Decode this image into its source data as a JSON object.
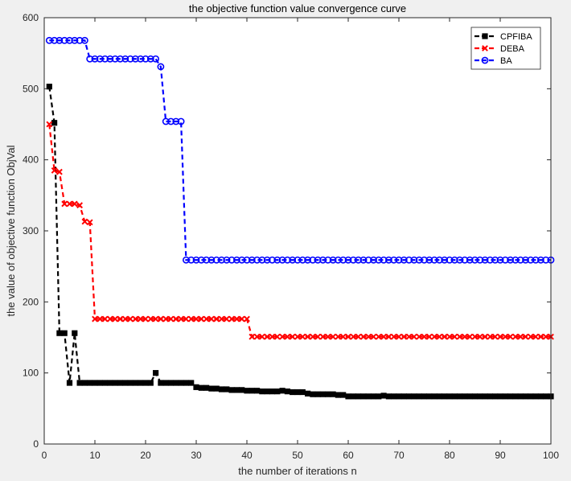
{
  "chart_data": {
    "type": "line",
    "title": "the objective function value convergence curve",
    "xlabel": "the number of iterations n",
    "ylabel": "the value of objective function ObjVal",
    "xlim": [
      0,
      100
    ],
    "ylim": [
      0,
      600
    ],
    "xticks": [
      0,
      10,
      20,
      30,
      40,
      50,
      60,
      70,
      80,
      90,
      100
    ],
    "yticks": [
      0,
      100,
      200,
      300,
      400,
      500,
      600
    ],
    "grid": false,
    "legend_position": "top-right",
    "colors": {
      "background": "#f0f0f0",
      "axes": "#ffffff"
    },
    "series": [
      {
        "name": "CPFIBA",
        "color": "#000000",
        "marker": "filled-square",
        "x": [
          1,
          2,
          3,
          4,
          5,
          6,
          7,
          8,
          9,
          10,
          11,
          12,
          13,
          14,
          15,
          16,
          17,
          18,
          19,
          20,
          21,
          22,
          23,
          24,
          25,
          26,
          27,
          28,
          29,
          30,
          31,
          32,
          33,
          34,
          35,
          36,
          37,
          38,
          39,
          40,
          41,
          42,
          43,
          44,
          45,
          46,
          47,
          48,
          49,
          50,
          51,
          52,
          53,
          54,
          55,
          56,
          57,
          58,
          59,
          60,
          61,
          62,
          63,
          64,
          65,
          66,
          67,
          68,
          69,
          70,
          71,
          72,
          73,
          74,
          75,
          76,
          77,
          78,
          79,
          80,
          81,
          82,
          83,
          84,
          85,
          86,
          87,
          88,
          89,
          90,
          91,
          92,
          93,
          94,
          95,
          96,
          97,
          98,
          99,
          100
        ],
        "y": [
          503,
          452,
          156,
          156,
          86,
          156,
          86,
          86,
          86,
          86,
          86,
          86,
          86,
          86,
          86,
          86,
          86,
          86,
          86,
          86,
          86,
          100,
          86,
          86,
          86,
          86,
          86,
          86,
          86,
          80,
          79,
          79,
          78,
          78,
          77,
          77,
          76,
          76,
          76,
          75,
          75,
          75,
          74,
          74,
          74,
          74,
          75,
          74,
          73,
          73,
          73,
          71,
          70,
          70,
          70,
          70,
          70,
          69,
          69,
          67,
          67,
          67,
          67,
          67,
          67,
          67,
          68,
          67,
          67,
          67,
          67,
          67,
          67,
          67,
          67,
          67,
          67,
          67,
          67,
          67,
          67,
          67,
          67,
          67,
          67,
          67,
          67,
          67,
          67,
          67,
          67,
          67,
          67,
          67,
          67,
          67,
          67,
          67,
          67,
          67
        ]
      },
      {
        "name": "DEBA",
        "color": "#ff0000",
        "marker": "x",
        "x": [
          1,
          2,
          3,
          4,
          5,
          6,
          7,
          8,
          9,
          10,
          11,
          12,
          13,
          14,
          15,
          16,
          17,
          18,
          19,
          20,
          21,
          22,
          23,
          24,
          25,
          26,
          27,
          28,
          29,
          30,
          31,
          32,
          33,
          34,
          35,
          36,
          37,
          38,
          39,
          40,
          41,
          42,
          43,
          44,
          45,
          46,
          47,
          48,
          49,
          50,
          51,
          52,
          53,
          54,
          55,
          56,
          57,
          58,
          59,
          60,
          61,
          62,
          63,
          64,
          65,
          66,
          67,
          68,
          69,
          70,
          71,
          72,
          73,
          74,
          75,
          76,
          77,
          78,
          79,
          80,
          81,
          82,
          83,
          84,
          85,
          86,
          87,
          88,
          89,
          90,
          91,
          92,
          93,
          94,
          95,
          96,
          97,
          98,
          99,
          100
        ],
        "y": [
          450,
          385,
          383,
          338,
          338,
          338,
          336,
          313,
          312,
          176,
          176,
          176,
          176,
          176,
          176,
          176,
          176,
          176,
          176,
          176,
          176,
          176,
          176,
          176,
          176,
          176,
          176,
          176,
          176,
          176,
          176,
          176,
          176,
          176,
          176,
          176,
          176,
          176,
          176,
          176,
          151,
          151,
          151,
          151,
          151,
          151,
          151,
          151,
          151,
          151,
          151,
          151,
          151,
          151,
          151,
          151,
          151,
          151,
          151,
          151,
          151,
          151,
          151,
          151,
          151,
          151,
          151,
          151,
          151,
          151,
          151,
          151,
          151,
          151,
          151,
          151,
          151,
          151,
          151,
          151,
          151,
          151,
          151,
          151,
          151,
          151,
          151,
          151,
          151,
          151,
          151,
          151,
          151,
          151,
          151,
          151,
          151,
          151,
          151,
          151
        ]
      },
      {
        "name": "BA",
        "color": "#0000ff",
        "marker": "circle",
        "x": [
          1,
          2,
          3,
          4,
          5,
          6,
          7,
          8,
          9,
          10,
          11,
          12,
          13,
          14,
          15,
          16,
          17,
          18,
          19,
          20,
          21,
          22,
          23,
          24,
          25,
          26,
          27,
          28,
          29,
          30,
          31,
          32,
          33,
          34,
          35,
          36,
          37,
          38,
          39,
          40,
          41,
          42,
          43,
          44,
          45,
          46,
          47,
          48,
          49,
          50,
          51,
          52,
          53,
          54,
          55,
          56,
          57,
          58,
          59,
          60,
          61,
          62,
          63,
          64,
          65,
          66,
          67,
          68,
          69,
          70,
          71,
          72,
          73,
          74,
          75,
          76,
          77,
          78,
          79,
          80,
          81,
          82,
          83,
          84,
          85,
          86,
          87,
          88,
          89,
          90,
          91,
          92,
          93,
          94,
          95,
          96,
          97,
          98,
          99,
          100
        ],
        "y": [
          568,
          568,
          568,
          568,
          568,
          568,
          568,
          568,
          542,
          542,
          542,
          542,
          542,
          542,
          542,
          542,
          542,
          542,
          542,
          542,
          542,
          542,
          531,
          454,
          454,
          454,
          454,
          259,
          259,
          259,
          259,
          259,
          259,
          259,
          259,
          259,
          259,
          259,
          259,
          259,
          259,
          259,
          259,
          259,
          259,
          259,
          259,
          259,
          259,
          259,
          259,
          259,
          259,
          259,
          259,
          259,
          259,
          259,
          259,
          259,
          259,
          259,
          259,
          259,
          259,
          259,
          259,
          259,
          259,
          259,
          259,
          259,
          259,
          259,
          259,
          259,
          259,
          259,
          259,
          259,
          259,
          259,
          259,
          259,
          259,
          259,
          259,
          259,
          259,
          259,
          259,
          259,
          259,
          259,
          259,
          259,
          259,
          259,
          259,
          259
        ]
      }
    ]
  }
}
